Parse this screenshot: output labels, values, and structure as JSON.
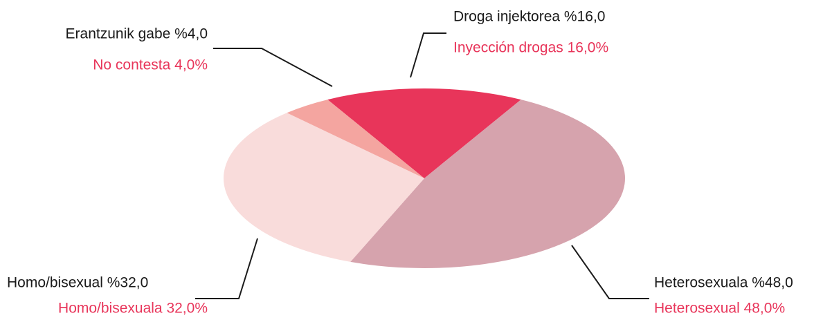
{
  "chart_data": {
    "type": "pie",
    "values": [
      16,
      48,
      32,
      4
    ],
    "value_labels": [
      "Droga injektorea %16,0",
      "Heterosexuala %48,0",
      "Homo/bisexual  %32,0",
      "Erantzunik gabe %4,0"
    ],
    "value_labels_es": [
      "Inyección drogas 16,0%",
      "Heterosexual 48,0%",
      "Homo/bisexuala 32,0%",
      "No contesta 4,0%"
    ],
    "colors": [
      "#e8355a",
      "#d6a3ad",
      "#f9dcdb",
      "#f4a5a0"
    ]
  }
}
